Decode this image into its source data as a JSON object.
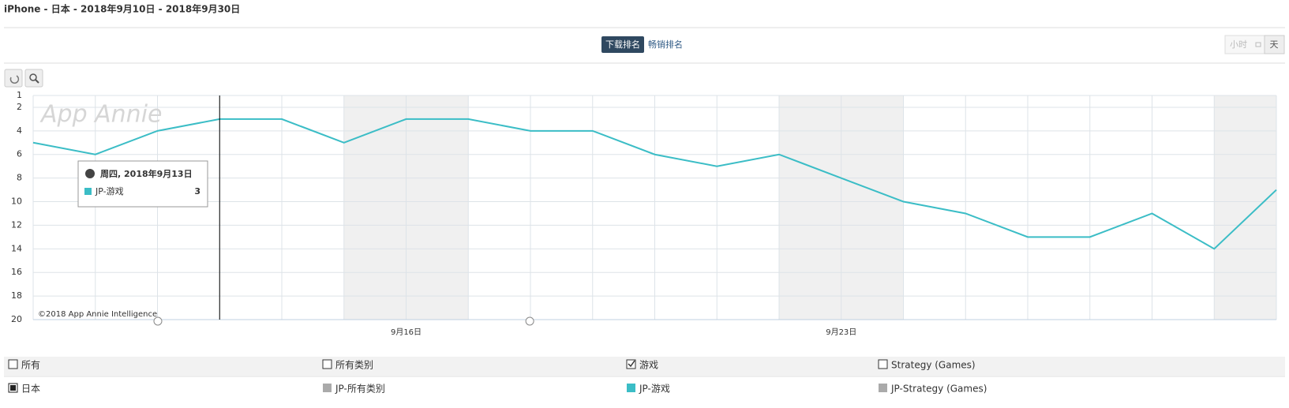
{
  "header": {
    "title": "iPhone - 日本 - 2018年9月10日 - 2018年9月30日"
  },
  "toolbar": {
    "tabs": [
      "下载排名",
      "畅销排名"
    ],
    "granularity": [
      "小时",
      "天"
    ]
  },
  "chart_data": {
    "type": "line",
    "watermark": "App Annie",
    "credit": "©2018 App Annie Intelligence",
    "categories": [
      null,
      null,
      null,
      null,
      null,
      null,
      "9月16日",
      null,
      null,
      null,
      null,
      null,
      null,
      "9月23日",
      null,
      null,
      null,
      null,
      null,
      null,
      null
    ],
    "series": [
      {
        "name": "JP-游戏",
        "color": "#3bbdc6",
        "values": [
          5,
          6,
          4,
          3,
          3,
          5,
          3,
          3,
          4,
          4,
          6,
          7,
          6,
          8,
          10,
          11,
          13,
          13,
          11,
          14,
          9
        ]
      }
    ],
    "ylim": [
      1,
      20
    ],
    "y_inverted": true,
    "yticks": [
      1,
      2,
      4,
      6,
      8,
      10,
      12,
      14,
      16,
      18,
      20
    ],
    "grid": true,
    "tooltip": {
      "title": "周四, 2018年9月13日"
    }
  },
  "filters": {
    "rows": [
      [
        "所有",
        "所有类别",
        "游戏",
        "Strategy (Games)"
      ],
      [
        "日本",
        "JP-所有类别",
        "JP-游戏",
        "JP-Strategy (Games)"
      ]
    ]
  }
}
